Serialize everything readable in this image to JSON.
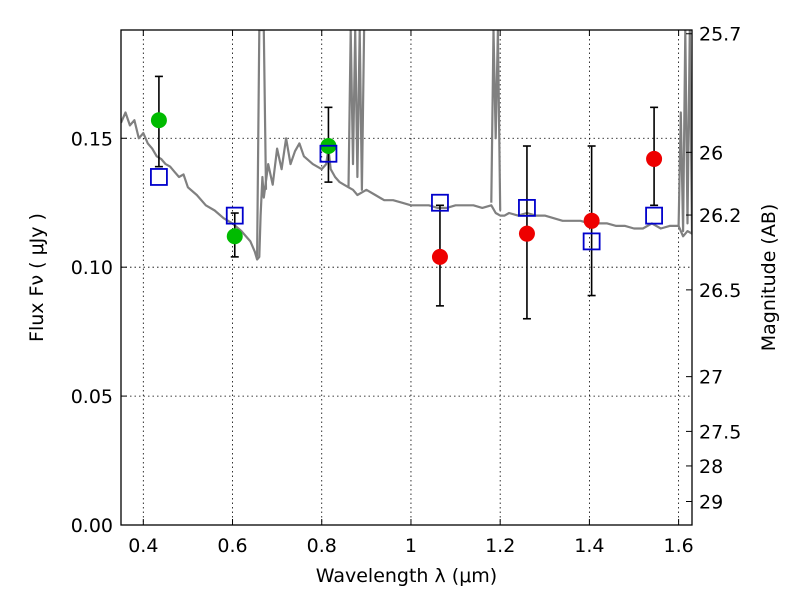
{
  "chart_data": {
    "type": "scatter",
    "title": "",
    "xlabel": "Wavelength  λ (μm)",
    "ylabel": "Flux  Fν  ( μJy )",
    "y2label": "Magnitude (AB)",
    "xlim": [
      0.35,
      1.63
    ],
    "ylim": [
      0.0,
      0.192
    ],
    "grid": true,
    "x_ticks": [
      {
        "value": 0.4,
        "label": "0.4"
      },
      {
        "value": 0.6,
        "label": "0.6"
      },
      {
        "value": 0.8,
        "label": "0.8"
      },
      {
        "value": 1.0,
        "label": "1"
      },
      {
        "value": 1.2,
        "label": "1.2"
      },
      {
        "value": 1.4,
        "label": "1.4"
      },
      {
        "value": 1.6,
        "label": "1.6"
      }
    ],
    "y_ticks": [
      {
        "value": 0.0,
        "label": "0.00"
      },
      {
        "value": 0.05,
        "label": "0.05"
      },
      {
        "value": 0.1,
        "label": "0.10"
      },
      {
        "value": 0.15,
        "label": "0.15"
      }
    ],
    "y2_ticks": [
      {
        "mag": 25.7,
        "label": "25.7"
      },
      {
        "mag": 26.0,
        "label": "26"
      },
      {
        "mag": 26.2,
        "label": "26.2"
      },
      {
        "mag": 26.5,
        "label": "26.5"
      },
      {
        "mag": 27.0,
        "label": "27"
      },
      {
        "mag": 27.5,
        "label": "27.5"
      },
      {
        "mag": 28.0,
        "label": "28"
      },
      {
        "mag": 29.0,
        "label": "29"
      }
    ],
    "series": [
      {
        "kind": "line",
        "color": "#808080",
        "x": [
          0.35,
          0.36,
          0.37,
          0.38,
          0.39,
          0.4,
          0.41,
          0.42,
          0.43,
          0.44,
          0.45,
          0.46,
          0.47,
          0.48,
          0.49,
          0.5,
          0.52,
          0.54,
          0.56,
          0.58,
          0.6,
          0.62,
          0.64,
          0.65,
          0.655,
          0.66,
          0.663,
          0.667,
          0.67,
          0.68,
          0.69,
          0.7,
          0.71,
          0.72,
          0.73,
          0.74,
          0.75,
          0.76,
          0.78,
          0.8,
          0.81,
          0.815,
          0.82,
          0.83,
          0.84,
          0.85,
          0.86,
          0.87,
          0.88,
          0.89,
          0.9,
          0.92,
          0.94,
          0.96,
          0.98,
          1.0,
          1.02,
          1.04,
          1.06,
          1.08,
          1.1,
          1.12,
          1.14,
          1.16,
          1.18,
          1.19,
          1.2,
          1.21,
          1.22,
          1.24,
          1.26,
          1.28,
          1.3,
          1.32,
          1.34,
          1.36,
          1.38,
          1.4,
          1.42,
          1.44,
          1.46,
          1.48,
          1.5,
          1.52,
          1.54,
          1.56,
          1.58,
          1.6,
          1.61,
          1.62,
          1.63
        ],
        "y": [
          0.156,
          0.16,
          0.155,
          0.157,
          0.15,
          0.152,
          0.148,
          0.146,
          0.143,
          0.142,
          0.14,
          0.139,
          0.137,
          0.135,
          0.136,
          0.131,
          0.128,
          0.124,
          0.122,
          0.119,
          0.117,
          0.114,
          0.11,
          0.106,
          0.103,
          0.104,
          0.12,
          0.135,
          0.127,
          0.14,
          0.132,
          0.146,
          0.138,
          0.15,
          0.14,
          0.145,
          0.148,
          0.143,
          0.14,
          0.138,
          0.14,
          0.146,
          0.138,
          0.135,
          0.133,
          0.132,
          0.131,
          0.13,
          0.128,
          0.129,
          0.13,
          0.128,
          0.126,
          0.126,
          0.125,
          0.124,
          0.124,
          0.124,
          0.123,
          0.123,
          0.124,
          0.124,
          0.124,
          0.123,
          0.124,
          0.121,
          0.12,
          0.12,
          0.121,
          0.12,
          0.121,
          0.12,
          0.12,
          0.119,
          0.118,
          0.118,
          0.118,
          0.117,
          0.117,
          0.117,
          0.116,
          0.116,
          0.115,
          0.115,
          0.117,
          0.115,
          0.116,
          0.116,
          0.112,
          0.114,
          0.113
        ]
      },
      {
        "kind": "line",
        "color": "#808080",
        "x": [
          0.655,
          0.66,
          0.665,
          0.67,
          0.675
        ],
        "y": [
          0.104,
          0.192,
          0.192,
          0.192,
          0.13
        ]
      },
      {
        "kind": "line",
        "color": "#808080",
        "x": [
          0.86,
          0.865,
          0.87,
          0.875,
          0.88,
          0.885,
          0.89,
          0.895
        ],
        "y": [
          0.131,
          0.192,
          0.14,
          0.192,
          0.135,
          0.192,
          0.13,
          0.192
        ]
      },
      {
        "kind": "line",
        "color": "#808080",
        "x": [
          1.18,
          1.185,
          1.19,
          1.195,
          1.2
        ],
        "y": [
          0.125,
          0.192,
          0.15,
          0.192,
          0.122
        ]
      },
      {
        "kind": "line",
        "color": "#808080",
        "x": [
          1.6,
          1.605,
          1.61,
          1.615,
          1.62,
          1.625,
          1.63
        ],
        "y": [
          0.116,
          0.16,
          0.114,
          0.192,
          0.117,
          0.192,
          0.113
        ]
      },
      {
        "kind": "points",
        "marker": "circle",
        "color": "#00bb00",
        "x": [
          0.435,
          0.605,
          0.815
        ],
        "y": [
          0.157,
          0.112,
          0.147
        ]
      },
      {
        "kind": "points",
        "marker": "circle",
        "color": "#ee0000",
        "x": [
          1.065,
          1.26,
          1.405,
          1.545
        ],
        "y": [
          0.104,
          0.113,
          0.118,
          0.142
        ]
      },
      {
        "kind": "points",
        "marker": "square",
        "color": "#0000cc",
        "x": [
          0.435,
          0.605,
          0.815,
          1.065,
          1.26,
          1.405,
          1.545
        ],
        "y": [
          0.135,
          0.12,
          0.144,
          0.125,
          0.123,
          0.11,
          0.12
        ]
      }
    ],
    "error_bars": [
      {
        "x": 0.435,
        "low": 0.139,
        "high": 0.174
      },
      {
        "x": 0.605,
        "low": 0.104,
        "high": 0.121
      },
      {
        "x": 0.815,
        "low": 0.133,
        "high": 0.162
      },
      {
        "x": 1.065,
        "low": 0.085,
        "high": 0.124
      },
      {
        "x": 1.26,
        "low": 0.08,
        "high": 0.147
      },
      {
        "x": 1.405,
        "low": 0.089,
        "high": 0.147
      },
      {
        "x": 1.545,
        "low": 0.124,
        "high": 0.162
      }
    ]
  }
}
